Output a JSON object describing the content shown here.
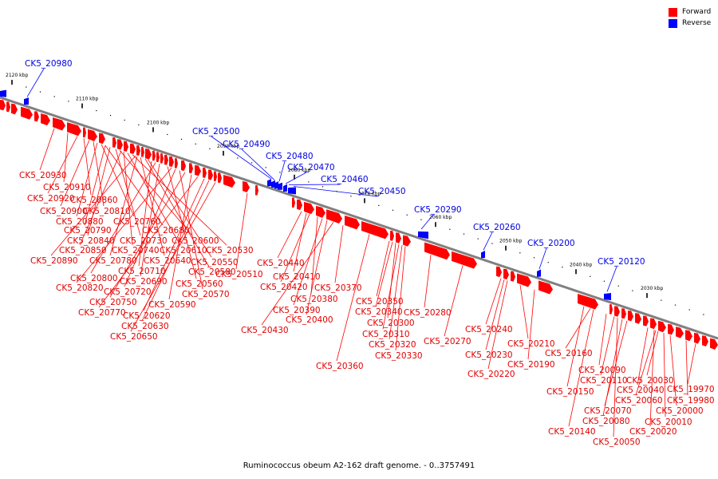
{
  "caption": "Ruminococcus obeum A2-162 draft genome. - 0..3757491",
  "legend": [
    {
      "label": "Forward",
      "color": "#ff0000"
    },
    {
      "label": "Reverse",
      "color": "#0000ff"
    }
  ],
  "colors": {
    "forward": "#ff0000",
    "reverse": "#0000ff",
    "backbone": "#808080"
  },
  "ticks": [
    {
      "label": "2120 kbp"
    },
    {
      "label": "2110 kbp"
    },
    {
      "label": "2100 kbp"
    },
    {
      "label": "2090 kbp"
    },
    {
      "label": "2080 kbp"
    },
    {
      "label": "2070 kbp"
    },
    {
      "label": "2060 kbp"
    },
    {
      "label": "2050 kbp"
    },
    {
      "label": "2040 kbp"
    },
    {
      "label": "2030 kbp"
    }
  ],
  "forward_labels": [
    "CK5_20930",
    "CK5_20910",
    "CK5_20920",
    "CK5_20860",
    "CK5_20900",
    "CK5_20810",
    "CK5_20880",
    "CK5_20760",
    "CK5_20790",
    "CK5_20680",
    "CK5_20840",
    "CK5_20730",
    "CK5_20600",
    "CK5_20850",
    "CK5_20740",
    "CK5_20610",
    "CK5_20530",
    "CK5_20890",
    "CK5_20780",
    "CK5_20640",
    "CK5_20580",
    "CK5_20550",
    "CK5_20710",
    "CK5_20510",
    "CK5_20800",
    "CK5_20690",
    "CK5_20560",
    "CK5_20820",
    "CK5_20720",
    "CK5_20570",
    "CK5_20750",
    "CK5_20590",
    "CK5_20770",
    "CK5_20620",
    "CK5_20630",
    "CK5_20650",
    "CK5_20440",
    "CK5_20410",
    "CK5_20420",
    "CK5_20370",
    "CK5_20380",
    "CK5_20390",
    "CK5_20400",
    "CK5_20430",
    "CK5_20350",
    "CK5_20340",
    "CK5_20280",
    "CK5_20300",
    "CK5_20310",
    "CK5_20320",
    "CK5_20330",
    "CK5_20360",
    "CK5_20270",
    "CK5_20240",
    "CK5_20210",
    "CK5_20230",
    "CK5_20190",
    "CK5_20220",
    "CK5_20160",
    "CK5_20090",
    "CK5_20110",
    "CK5_20030",
    "CK5_19970",
    "CK5_20150",
    "CK5_20040",
    "CK5_20060",
    "CK5_19980",
    "CK5_20070",
    "CK5_20000",
    "CK5_20080",
    "CK5_20010",
    "CK5_20140",
    "CK5_20020",
    "CK5_20050"
  ],
  "reverse_labels": [
    "CK5_20980",
    "CK5_20500",
    "CK5_20490",
    "CK5_20480",
    "CK5_20470",
    "CK5_20460",
    "CK5_20450",
    "CK5_20290",
    "CK5_20260",
    "CK5_20200",
    "CK5_20120"
  ]
}
